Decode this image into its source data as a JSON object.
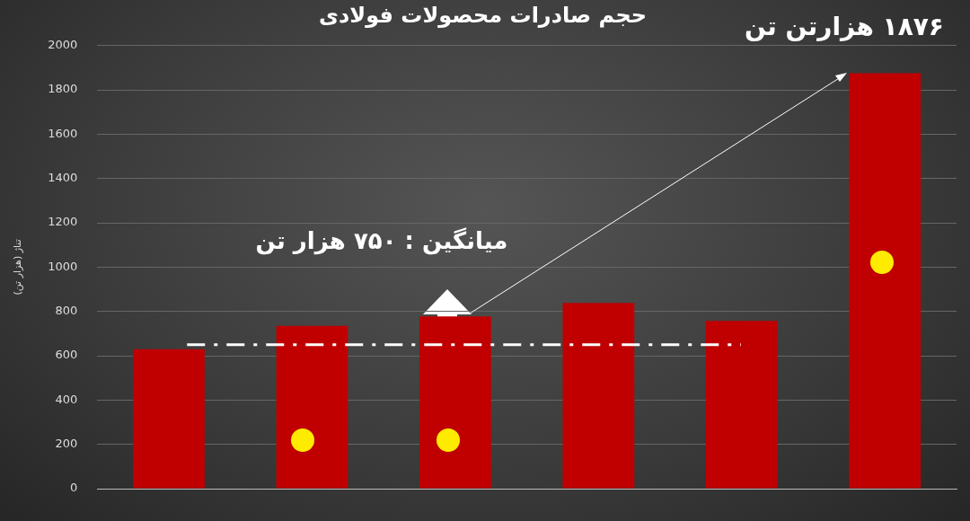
{
  "chart_data": {
    "type": "bar",
    "title": "حجم صادرات محصولات فولادی",
    "ylabel": "تناژ (هزار تن)",
    "categories": [
      null,
      null,
      null,
      null,
      null,
      null
    ],
    "values": [
      630,
      735,
      778,
      838,
      757,
      1876
    ],
    "color": "#c00000",
    "ylim": [
      0,
      2000
    ],
    "yticks": [
      0,
      200,
      400,
      600,
      800,
      1000,
      1200,
      1400,
      1600,
      1800,
      2000
    ],
    "grid": "y",
    "tick_labels": "y",
    "ref_lines": [
      {
        "axis": "y",
        "value": 650,
        "color": "#ffffff",
        "line_style": "dashdot"
      }
    ],
    "annotations": [
      "۱۸۷۶ هزارتن تن",
      "میانگین : ۷۵۰ هزار تن"
    ]
  }
}
